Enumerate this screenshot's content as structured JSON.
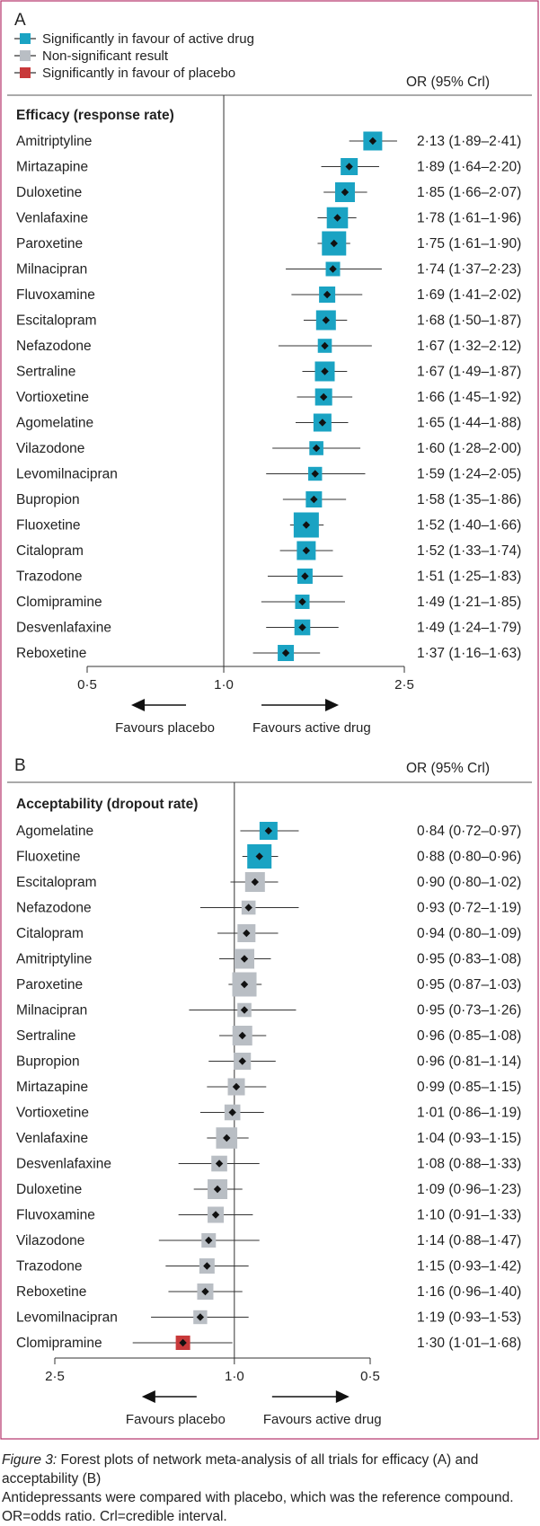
{
  "colors": {
    "significant_active": "#1aa3c3",
    "non_significant": "#b9bec4",
    "significant_placebo": "#c8393a",
    "axis": "#333333",
    "frame": "#b5326a"
  },
  "legend": {
    "items": [
      {
        "label": "Significantly in favour of active drug",
        "color": "#1aa3c3"
      },
      {
        "label": "Non-significant result",
        "color": "#b9bec4"
      },
      {
        "label": "Significantly in favour of placebo",
        "color": "#c8393a"
      }
    ]
  },
  "chart_data": [
    {
      "panel": "A",
      "type": "forest",
      "header": "OR (95% Crl)",
      "section_title": "Efficacy (response rate)",
      "scale": "log",
      "xlim": [
        0.5,
        2.5
      ],
      "ticks": [
        "0·5",
        "1·0",
        "2·5"
      ],
      "tick_values": [
        0.5,
        1.0,
        2.5
      ],
      "left_label": "Favours placebo",
      "right_label": "Favours active drug",
      "rows": [
        {
          "drug": "Amitriptyline",
          "or": 2.13,
          "lo": 1.89,
          "hi": 2.41,
          "sig": "active",
          "weight": 0.55,
          "ci_text": "2·13 (1·89–2·41)"
        },
        {
          "drug": "Mirtazapine",
          "or": 1.89,
          "lo": 1.64,
          "hi": 2.2,
          "sig": "active",
          "weight": 0.45,
          "ci_text": "1·89 (1·64–2·20)"
        },
        {
          "drug": "Duloxetine",
          "or": 1.85,
          "lo": 1.66,
          "hi": 2.07,
          "sig": "active",
          "weight": 0.6,
          "ci_text": "1·85 (1·66–2·07)"
        },
        {
          "drug": "Venlafaxine",
          "or": 1.78,
          "lo": 1.61,
          "hi": 1.96,
          "sig": "active",
          "weight": 0.68,
          "ci_text": "1·78 (1·61–1·96)"
        },
        {
          "drug": "Paroxetine",
          "or": 1.75,
          "lo": 1.61,
          "hi": 1.9,
          "sig": "active",
          "weight": 0.85,
          "ci_text": "1·75 (1·61–1·90)"
        },
        {
          "drug": "Milnacipran",
          "or": 1.74,
          "lo": 1.37,
          "hi": 2.23,
          "sig": "active",
          "weight": 0.3,
          "ci_text": "1·74 (1·37–2·23)"
        },
        {
          "drug": "Fluvoxamine",
          "or": 1.69,
          "lo": 1.41,
          "hi": 2.02,
          "sig": "active",
          "weight": 0.4,
          "ci_text": "1·69 (1·41–2·02)"
        },
        {
          "drug": "Escitalopram",
          "or": 1.68,
          "lo": 1.5,
          "hi": 1.87,
          "sig": "active",
          "weight": 0.6,
          "ci_text": "1·68 (1·50–1·87)"
        },
        {
          "drug": "Nefazodone",
          "or": 1.67,
          "lo": 1.32,
          "hi": 2.12,
          "sig": "active",
          "weight": 0.28,
          "ci_text": "1·67 (1·32–2·12)"
        },
        {
          "drug": "Sertraline",
          "or": 1.67,
          "lo": 1.49,
          "hi": 1.87,
          "sig": "active",
          "weight": 0.6,
          "ci_text": "1·67 (1·49–1·87)"
        },
        {
          "drug": "Vortioxetine",
          "or": 1.66,
          "lo": 1.45,
          "hi": 1.92,
          "sig": "active",
          "weight": 0.45,
          "ci_text": "1·66 (1·45–1·92)"
        },
        {
          "drug": "Agomelatine",
          "or": 1.65,
          "lo": 1.44,
          "hi": 1.88,
          "sig": "active",
          "weight": 0.5,
          "ci_text": "1·65 (1·44–1·88)"
        },
        {
          "drug": "Vilazodone",
          "or": 1.6,
          "lo": 1.28,
          "hi": 2.0,
          "sig": "active",
          "weight": 0.28,
          "ci_text": "1·60 (1·28–2·00)"
        },
        {
          "drug": "Levomilnacipran",
          "or": 1.59,
          "lo": 1.24,
          "hi": 2.05,
          "sig": "active",
          "weight": 0.27,
          "ci_text": "1·59 (1·24–2·05)"
        },
        {
          "drug": "Bupropion",
          "or": 1.58,
          "lo": 1.35,
          "hi": 1.86,
          "sig": "active",
          "weight": 0.4,
          "ci_text": "1·58 (1·35–1·86)"
        },
        {
          "drug": "Fluoxetine",
          "or": 1.52,
          "lo": 1.4,
          "hi": 1.66,
          "sig": "active",
          "weight": 0.9,
          "ci_text": "1·52 (1·40–1·66)"
        },
        {
          "drug": "Citalopram",
          "or": 1.52,
          "lo": 1.33,
          "hi": 1.74,
          "sig": "active",
          "weight": 0.55,
          "ci_text": "1·52 (1·33–1·74)"
        },
        {
          "drug": "Trazodone",
          "or": 1.51,
          "lo": 1.25,
          "hi": 1.83,
          "sig": "active",
          "weight": 0.35,
          "ci_text": "1·51 (1·25–1·83)"
        },
        {
          "drug": "Clomipramine",
          "or": 1.49,
          "lo": 1.21,
          "hi": 1.85,
          "sig": "active",
          "weight": 0.3,
          "ci_text": "1·49 (1·21–1·85)"
        },
        {
          "drug": "Desvenlafaxine",
          "or": 1.49,
          "lo": 1.24,
          "hi": 1.79,
          "sig": "active",
          "weight": 0.38,
          "ci_text": "1·49 (1·24–1·79)"
        },
        {
          "drug": "Reboxetine",
          "or": 1.37,
          "lo": 1.16,
          "hi": 1.63,
          "sig": "active",
          "weight": 0.4,
          "ci_text": "1·37 (1·16–1·63)"
        }
      ]
    },
    {
      "panel": "B",
      "type": "forest",
      "header": "OR (95% Crl)",
      "section_title": "Acceptability (dropout rate)",
      "scale": "log",
      "reversed": true,
      "xlim": [
        2.5,
        0.5
      ],
      "ticks": [
        "2·5",
        "1·0",
        "0·5"
      ],
      "tick_values": [
        2.5,
        1.0,
        0.5
      ],
      "left_label": "Favours placebo",
      "right_label": "Favours active drug",
      "rows": [
        {
          "drug": "Agomelatine",
          "or": 0.84,
          "lo": 0.72,
          "hi": 0.97,
          "sig": "active",
          "weight": 0.5,
          "ci_text": "0·84 (0·72–0·97)"
        },
        {
          "drug": "Fluoxetine",
          "or": 0.88,
          "lo": 0.8,
          "hi": 0.96,
          "sig": "active",
          "weight": 0.85,
          "ci_text": "0·88 (0·80–0·96)"
        },
        {
          "drug": "Escitalopram",
          "or": 0.9,
          "lo": 0.8,
          "hi": 1.02,
          "sig": "none",
          "weight": 0.6,
          "ci_text": "0·90 (0·80–1·02)"
        },
        {
          "drug": "Nefazodone",
          "or": 0.93,
          "lo": 0.72,
          "hi": 1.19,
          "sig": "none",
          "weight": 0.28,
          "ci_text": "0·93 (0·72–1·19)"
        },
        {
          "drug": "Citalopram",
          "or": 0.94,
          "lo": 0.8,
          "hi": 1.09,
          "sig": "none",
          "weight": 0.5,
          "ci_text": "0·94 (0·80–1·09)"
        },
        {
          "drug": "Amitriptyline",
          "or": 0.95,
          "lo": 0.83,
          "hi": 1.08,
          "sig": "none",
          "weight": 0.6,
          "ci_text": "0·95 (0·83–1·08)"
        },
        {
          "drug": "Paroxetine",
          "or": 0.95,
          "lo": 0.87,
          "hi": 1.03,
          "sig": "none",
          "weight": 0.85,
          "ci_text": "0·95 (0·87–1·03)"
        },
        {
          "drug": "Milnacipran",
          "or": 0.95,
          "lo": 0.73,
          "hi": 1.26,
          "sig": "none",
          "weight": 0.28,
          "ci_text": "0·95 (0·73–1·26)"
        },
        {
          "drug": "Sertraline",
          "or": 0.96,
          "lo": 0.85,
          "hi": 1.08,
          "sig": "none",
          "weight": 0.6,
          "ci_text": "0·96 (0·85–1·08)"
        },
        {
          "drug": "Bupropion",
          "or": 0.96,
          "lo": 0.81,
          "hi": 1.14,
          "sig": "none",
          "weight": 0.45,
          "ci_text": "0·96 (0·81–1·14)"
        },
        {
          "drug": "Mirtazapine",
          "or": 0.99,
          "lo": 0.85,
          "hi": 1.15,
          "sig": "none",
          "weight": 0.45,
          "ci_text": "0·99 (0·85–1·15)"
        },
        {
          "drug": "Vortioxetine",
          "or": 1.01,
          "lo": 0.86,
          "hi": 1.19,
          "sig": "none",
          "weight": 0.38,
          "ci_text": "1·01 (0·86–1·19)"
        },
        {
          "drug": "Venlafaxine",
          "or": 1.04,
          "lo": 0.93,
          "hi": 1.15,
          "sig": "none",
          "weight": 0.68,
          "ci_text": "1·04 (0·93–1·15)"
        },
        {
          "drug": "Desvenlafaxine",
          "or": 1.08,
          "lo": 0.88,
          "hi": 1.33,
          "sig": "none",
          "weight": 0.38,
          "ci_text": "1·08 (0·88–1·33)"
        },
        {
          "drug": "Duloxetine",
          "or": 1.09,
          "lo": 0.96,
          "hi": 1.23,
          "sig": "none",
          "weight": 0.6,
          "ci_text": "1·09 (0·96–1·23)"
        },
        {
          "drug": "Fluvoxamine",
          "or": 1.1,
          "lo": 0.91,
          "hi": 1.33,
          "sig": "none",
          "weight": 0.4,
          "ci_text": "1·10 (0·91–1·33)"
        },
        {
          "drug": "Vilazodone",
          "or": 1.14,
          "lo": 0.88,
          "hi": 1.47,
          "sig": "none",
          "weight": 0.3,
          "ci_text": "1·14 (0·88–1·47)"
        },
        {
          "drug": "Trazodone",
          "or": 1.15,
          "lo": 0.93,
          "hi": 1.42,
          "sig": "none",
          "weight": 0.35,
          "ci_text": "1·15 (0·93–1·42)"
        },
        {
          "drug": "Reboxetine",
          "or": 1.16,
          "lo": 0.96,
          "hi": 1.4,
          "sig": "none",
          "weight": 0.4,
          "ci_text": "1·16 (0·96–1·40)"
        },
        {
          "drug": "Levomilnacipran",
          "or": 1.19,
          "lo": 0.93,
          "hi": 1.53,
          "sig": "none",
          "weight": 0.27,
          "ci_text": "1·19 (0·93–1·53)"
        },
        {
          "drug": "Clomipramine",
          "or": 1.3,
          "lo": 1.01,
          "hi": 1.68,
          "sig": "placebo",
          "weight": 0.3,
          "ci_text": "1·30 (1·01–1·68)"
        }
      ]
    }
  ],
  "caption": {
    "label": "Figure 3:",
    "title": "Forest plots of network meta-analysis of all trials for efficacy (A) and acceptability (B)",
    "body": "Antidepressants were compared with placebo, which was the reference compound. OR=odds ratio. Crl=credible interval."
  }
}
